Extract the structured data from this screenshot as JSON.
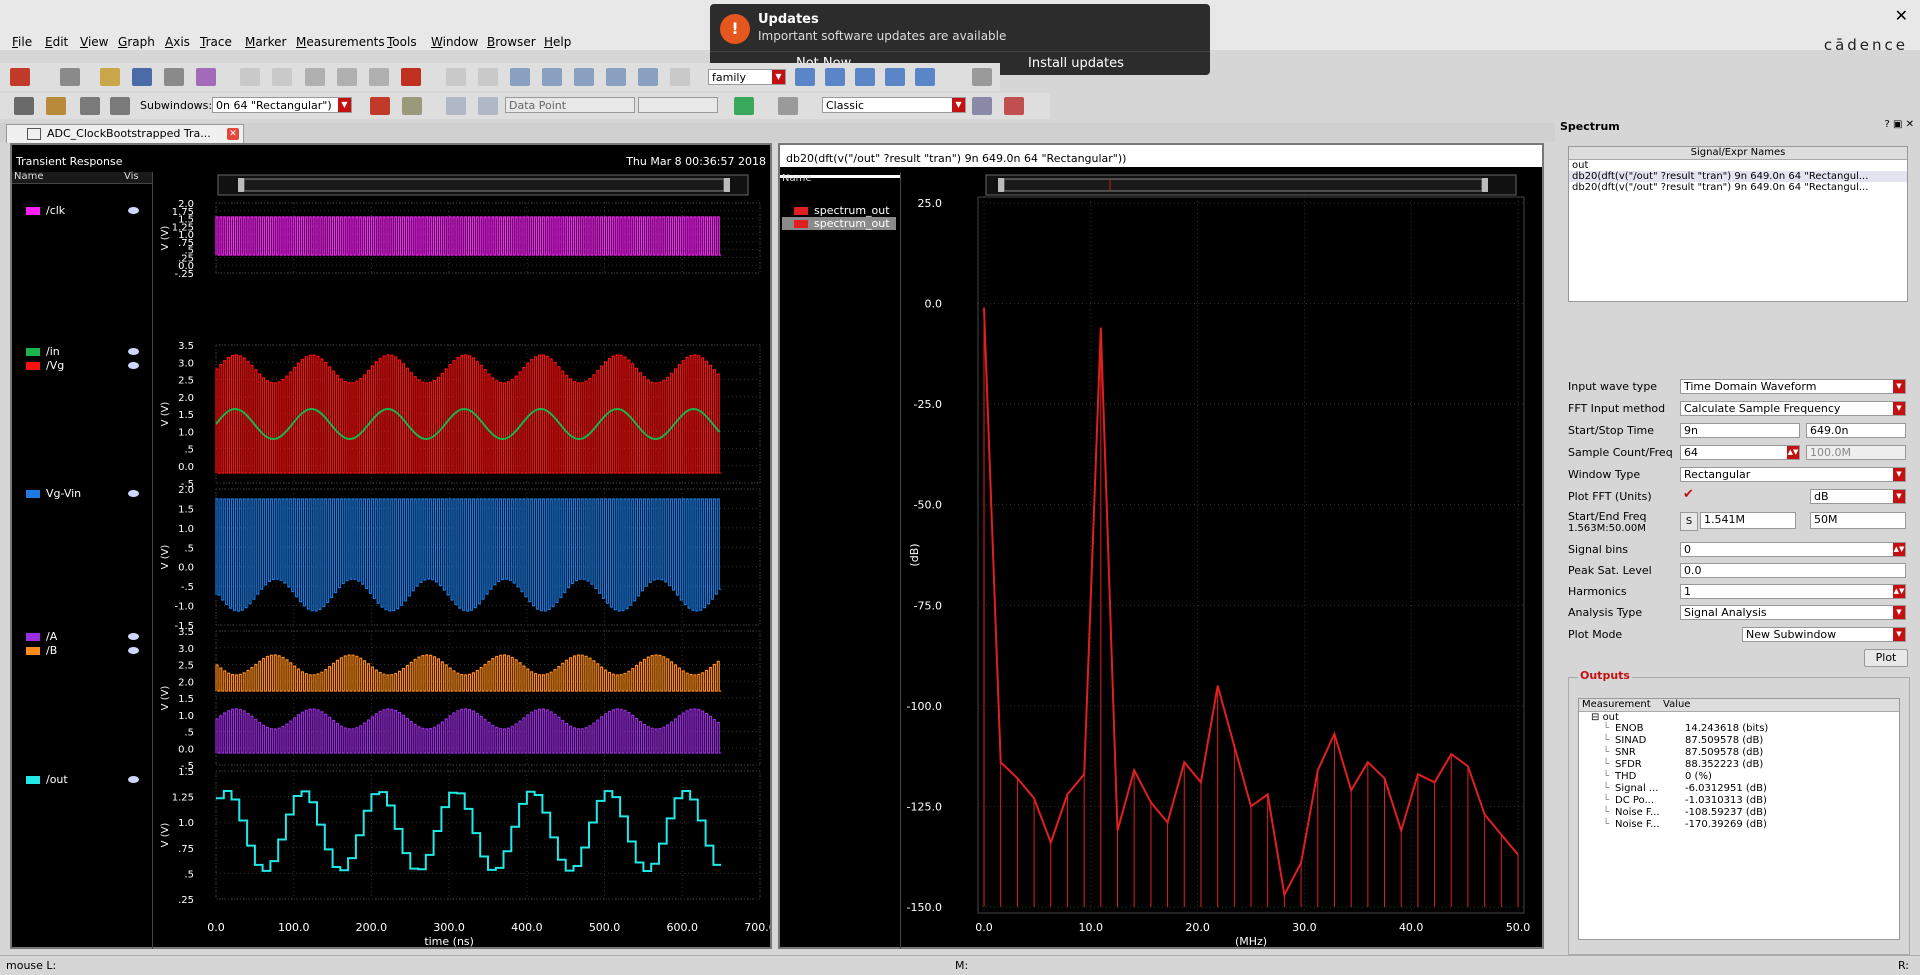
{
  "menu": [
    "File",
    "Edit",
    "View",
    "Graph",
    "Axis",
    "Trace",
    "Marker",
    "Measurements",
    "Tools",
    "Window",
    "Browser",
    "Help"
  ],
  "brand": "cādence",
  "notification": {
    "title": "Updates",
    "subtitle": "Important software updates are available",
    "btn_later": "Not Now",
    "btn_install": "Install updates"
  },
  "toolbar": {
    "family_label": "family",
    "subwindows_label": "Subwindows:",
    "subwindow_value": "0n 64 \"Rectangular\")",
    "datapoint_label": "Data Point",
    "style_value": "Classic"
  },
  "tab": {
    "label": "ADC_ClockBootstrapped Tra..."
  },
  "left": {
    "title": "Transient Response",
    "timestamp": "Thu Mar 8 00:36:57 2018",
    "col_name": "Name",
    "col_vis": "Vis",
    "legend": [
      {
        "label": "/clk",
        "color": "#ff1fff"
      },
      {
        "label": "/in",
        "color": "#19b54a"
      },
      {
        "label": "/Vg",
        "color": "#ff1010"
      },
      {
        "label": "Vg-Vin",
        "color": "#1c7ae0"
      },
      {
        "label": "/A",
        "color": "#9b2ce0"
      },
      {
        "label": "/B",
        "color": "#ff8c1a"
      },
      {
        "label": "/out",
        "color": "#22e8e8"
      }
    ],
    "ylabel": "V (V)",
    "xlabel": "time (ns)",
    "xticks": [
      "0.0",
      "100.0",
      "200.0",
      "300.0",
      "400.0",
      "500.0",
      "600.0",
      "700.0"
    ],
    "strips": [
      {
        "ticks": [
          "2.0",
          "1.75",
          "1.5",
          "1.25",
          "1.0",
          ".75",
          ".5",
          ".25",
          "0.0",
          "-.25"
        ]
      },
      {
        "ticks": [
          "3.5",
          "3.0",
          "2.5",
          "2.0",
          "1.5",
          "1.0",
          ".5",
          "0.0",
          "-.5"
        ]
      },
      {
        "ticks": [
          "2.0",
          "1.5",
          "1.0",
          ".5",
          "0.0",
          "-.5",
          "-1.0",
          "-1.5"
        ]
      },
      {
        "ticks": [
          "3.5",
          "3.0",
          "2.5",
          "2.0",
          "1.5",
          "1.0",
          ".5",
          "0.0",
          "-.5"
        ]
      },
      {
        "ticks": [
          "1.5",
          "1.25",
          "1.0",
          ".75",
          ".5",
          ".25"
        ]
      }
    ]
  },
  "right": {
    "title": "db20(dft(v(\"/out\" ?result \"tran\")  9n 649.0n 64 \"Rectangular\"))",
    "col_name": "Name",
    "legend": [
      "spectrum_out",
      "spectrum_out"
    ],
    "legend_color": "#e02020",
    "ylabel": "(dB)",
    "xlabel": "(MHz)",
    "yticks": [
      "25.0",
      "0.0",
      "-25.0",
      "-50.0",
      "-75.0",
      "-100.0",
      "-125.0",
      "-150.0"
    ],
    "xticks": [
      "0.0",
      "10.0",
      "20.0",
      "30.0",
      "40.0",
      "50.0"
    ]
  },
  "chart_data": {
    "type": "line",
    "title": "db20(dft(v(\"/out\" ?result \"tran\")  9n 649.0n 64 \"Rectangular\"))",
    "xlabel": "(MHz)",
    "ylabel": "(dB)",
    "xlim": [
      0,
      50
    ],
    "ylim": [
      -150,
      25
    ],
    "series": [
      {
        "name": "spectrum_out",
        "x": [
          0,
          1.56,
          3.13,
          4.69,
          6.25,
          7.81,
          9.38,
          10.94,
          12.5,
          14.06,
          15.63,
          17.19,
          18.75,
          20.31,
          21.88,
          23.44,
          25.0,
          26.56,
          28.13,
          29.69,
          31.25,
          32.81,
          34.38,
          35.94,
          37.5,
          39.06,
          40.63,
          42.19,
          43.75,
          45.31,
          46.88,
          48.44,
          50.0
        ],
        "y": [
          -1,
          -114,
          -118,
          -123,
          -134,
          -122,
          -117,
          -6,
          -131,
          -116,
          -124,
          -129,
          -114,
          -119,
          -95,
          -110,
          -125,
          -122,
          -147,
          -139,
          -116,
          -107,
          -121,
          -114,
          -118,
          -131,
          -117,
          -119,
          -112,
          -115,
          -127,
          -132,
          -137
        ]
      }
    ]
  },
  "spectrum": {
    "title": "Spectrum",
    "names_header": "Signal/Expr Names",
    "names": [
      "out",
      "db20(dft(v(\"/out\" ?result \"tran\")  9n 649.0n 64 \"Rectangul...",
      "db20(dft(v(\"/out\" ?result \"tran\")  9n 649.0n 64 \"Rectangul..."
    ],
    "fields": {
      "input_wave_type": {
        "label": "Input wave type",
        "value": "Time Domain Waveform"
      },
      "fft_input_method": {
        "label": "FFT Input method",
        "value": "Calculate Sample Frequency"
      },
      "start_stop": {
        "label": "Start/Stop Time",
        "start": "9n",
        "stop": "649.0n"
      },
      "sample": {
        "label": "Sample Count/Freq",
        "count": "64",
        "freq": "100.0M"
      },
      "window_type": {
        "label": "Window Type",
        "value": "Rectangular"
      },
      "plot_fft": {
        "label": "Plot FFT (Units)",
        "units": "dB"
      },
      "freq": {
        "label": "Start/End Freq",
        "sub": "1.563M:50.00M",
        "btn": "S",
        "start": "1.541M",
        "end": "50M"
      },
      "signal_bins": {
        "label": "Signal bins",
        "value": "0"
      },
      "peak_sat": {
        "label": "Peak Sat. Level",
        "value": "0.0"
      },
      "harmonics": {
        "label": "Harmonics",
        "value": "1"
      },
      "analysis_type": {
        "label": "Analysis Type",
        "value": "Signal Analysis"
      },
      "plot_mode": {
        "label": "Plot Mode",
        "value": "New Subwindow"
      }
    },
    "plot_btn": "Plot",
    "outputs_title": "Outputs",
    "out_headers": [
      "Measurement",
      "Value"
    ],
    "out_root": "out",
    "outputs": [
      {
        "name": "ENOB",
        "value": "14.243618 (bits)"
      },
      {
        "name": "SINAD",
        "value": "87.509578 (dB)"
      },
      {
        "name": "SNR",
        "value": "87.509578 (dB)"
      },
      {
        "name": "SFDR",
        "value": "88.352223 (dB)"
      },
      {
        "name": "THD",
        "value": "0 (%)"
      },
      {
        "name": "Signal ...",
        "value": "-6.0312951 (dB)"
      },
      {
        "name": "DC Po...",
        "value": "-1.0310313 (dB)"
      },
      {
        "name": "Noise F...",
        "value": "-108.59237 (dB)"
      },
      {
        "name": "Noise F...",
        "value": "-170.39269 (dB)"
      }
    ]
  },
  "status": {
    "left": "mouse L:",
    "mid": "M:",
    "right": "R:"
  }
}
